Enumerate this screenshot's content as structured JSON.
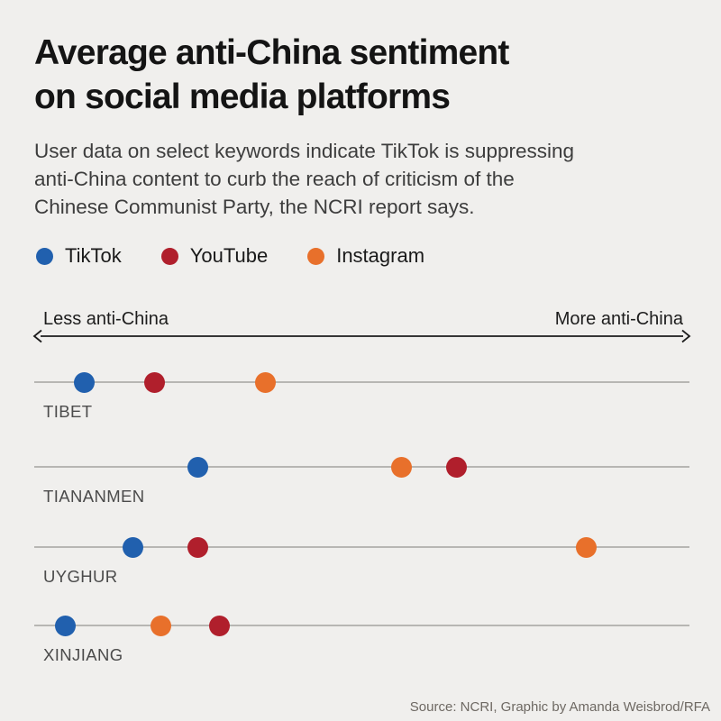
{
  "title": "Average anti-China sentiment\non social media platforms",
  "subtitle": "User data on select keywords indicate TikTok is suppressing\nanti-China content to curb the reach of criticism of the\nChinese Communist Party, the NCRI report says.",
  "legend": [
    {
      "label": "TikTok",
      "color": "#2160ae"
    },
    {
      "label": "YouTube",
      "color": "#b01f2c"
    },
    {
      "label": "Instagram",
      "color": "#e8702b"
    }
  ],
  "axis": {
    "left_label": "Less anti-China",
    "right_label": "More anti-China"
  },
  "chart_data": {
    "type": "scatter",
    "subtype": "dot-plot",
    "categories": [
      "TIBET",
      "TIANANMEN",
      "UYGHUR",
      "XINJIANG"
    ],
    "series": [
      {
        "name": "TikTok",
        "color": "#2160ae",
        "values_pct": [
          7.6,
          25.0,
          15.1,
          4.8
        ]
      },
      {
        "name": "YouTube",
        "color": "#b01f2c",
        "values_pct": [
          18.3,
          64.5,
          24.9,
          28.2
        ]
      },
      {
        "name": "Instagram",
        "color": "#e8702b",
        "values_pct": [
          35.3,
          56.0,
          84.2,
          19.3
        ]
      }
    ],
    "x_axis": {
      "left_label": "Less anti-China",
      "right_label": "More anti-China",
      "scale": "relative 0-100, no numeric ticks shown"
    },
    "grid": "one horizontal baseline per category",
    "legend_position": "top-left above chart"
  },
  "source": "Source: NCRI, Graphic by Amanda Weisbrod/RFA",
  "colors": {
    "background": "#f0efed",
    "title_text": "#141414",
    "subtitle_text": "#3d3d3d",
    "row_line": "#b7b6b3",
    "row_label": "#4b4b4b",
    "arrow": "#1c1c1c",
    "source_text": "#6e6963"
  }
}
